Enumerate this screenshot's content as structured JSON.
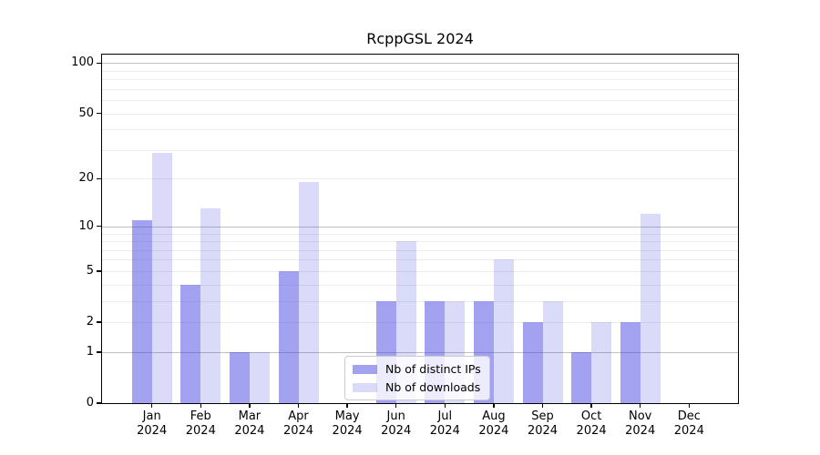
{
  "chart_data": {
    "type": "bar",
    "title": "RcppGSL 2024",
    "categories": [
      "Jan",
      "Feb",
      "Mar",
      "Apr",
      "May",
      "Jun",
      "Jul",
      "Aug",
      "Sep",
      "Oct",
      "Nov",
      "Dec"
    ],
    "x_year_label": "2024",
    "series": [
      {
        "name": "Nb of distinct IPs",
        "values": [
          11,
          4,
          1,
          5,
          0,
          3,
          3,
          3,
          2,
          1,
          2,
          0
        ],
        "color": "rgba(70,70,225,0.5)",
        "color_on_white_hex": "#a2a2f0"
      },
      {
        "name": "Nb of downloads",
        "values": [
          29,
          13,
          1,
          19,
          0,
          8,
          3,
          6,
          3,
          2,
          12,
          0
        ],
        "color": "rgba(70,70,225,0.2)",
        "color_on_white_hex": "#dadaf9"
      }
    ],
    "yscale": "log1p",
    "ylim": [
      0,
      113
    ],
    "ytick_labels": [
      0,
      1,
      2,
      5,
      10,
      20,
      50,
      100
    ],
    "grid": "on",
    "grid_major_values": [
      1,
      10,
      100
    ],
    "grid_minor_values": [
      2,
      3,
      4,
      5,
      6,
      7,
      8,
      9,
      20,
      30,
      40,
      50,
      60,
      70,
      80,
      90
    ],
    "legend_position": "lower center",
    "colors": {
      "grid_major": "#bfbfbf",
      "grid_minor": "#ededed",
      "spine": "#000000",
      "legend_border": "#cccccc",
      "bar_base": "#4646e1"
    }
  }
}
